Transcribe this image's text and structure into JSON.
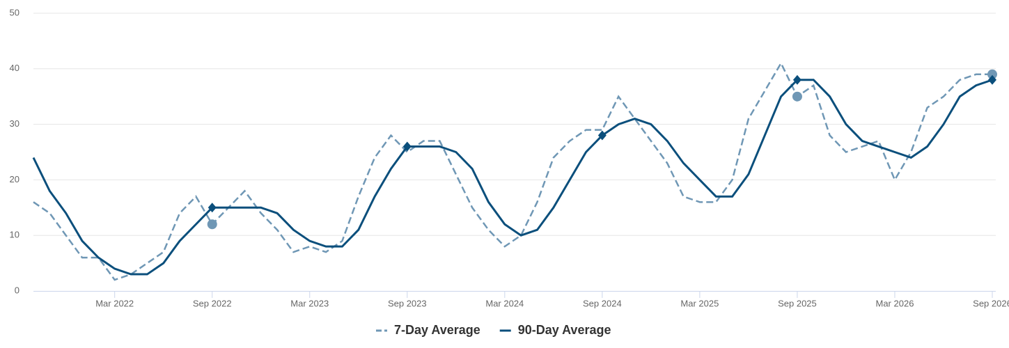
{
  "chart_data": {
    "type": "line",
    "categories": [
      null,
      null,
      null,
      null,
      null,
      "Mar 2022",
      null,
      null,
      null,
      null,
      null,
      "Sep 2022",
      null,
      null,
      null,
      null,
      null,
      "Mar 2023",
      null,
      null,
      null,
      null,
      null,
      "Sep 2023",
      null,
      null,
      null,
      null,
      null,
      "Mar 2024",
      null,
      null,
      null,
      null,
      null,
      "Sep 2024",
      null,
      null,
      null,
      null,
      null,
      "Mar 2025",
      null,
      null,
      null,
      null,
      null,
      "Sep 2025",
      null,
      null,
      null,
      null,
      null,
      "Mar 2026",
      null,
      null,
      null,
      null,
      null,
      "Sep 2026"
    ],
    "series": [
      {
        "name": "7-Day Average",
        "color": "#6f97b5",
        "dashed": true,
        "marker": "circle",
        "marker_points": [
          11,
          47,
          59
        ],
        "values": [
          16,
          14,
          10,
          6,
          6,
          2,
          3,
          5,
          7,
          14,
          17,
          12,
          15,
          18,
          14,
          11,
          7,
          8,
          7,
          9,
          17,
          24,
          28,
          25,
          27,
          27,
          21,
          15,
          11,
          8,
          10,
          16,
          24,
          27,
          29,
          29,
          35,
          31,
          27,
          23,
          17,
          16,
          16,
          20,
          31,
          36,
          41,
          35,
          37,
          28,
          25,
          26,
          27,
          20,
          25,
          33,
          35,
          38,
          39,
          39
        ]
      },
      {
        "name": "90-Day Average",
        "color": "#0b4f7c",
        "dashed": false,
        "marker": "diamond",
        "marker_points": [
          11,
          23,
          35,
          47,
          59
        ],
        "values": [
          24,
          18,
          14,
          9,
          6,
          4,
          3,
          3,
          5,
          9,
          12,
          15,
          15,
          15,
          15,
          14,
          11,
          9,
          8,
          8,
          11,
          17,
          22,
          26,
          26,
          26,
          25,
          22,
          16,
          12,
          10,
          11,
          15,
          20,
          25,
          28,
          30,
          31,
          30,
          27,
          23,
          20,
          17,
          17,
          21,
          28,
          35,
          38,
          38,
          35,
          30,
          27,
          26,
          25,
          24,
          26,
          30,
          35,
          37,
          38
        ]
      }
    ],
    "ylim": [
      0,
      50
    ],
    "yticks": [
      0,
      10,
      20,
      30,
      40,
      50
    ],
    "grid": true,
    "legend": "bottom"
  }
}
